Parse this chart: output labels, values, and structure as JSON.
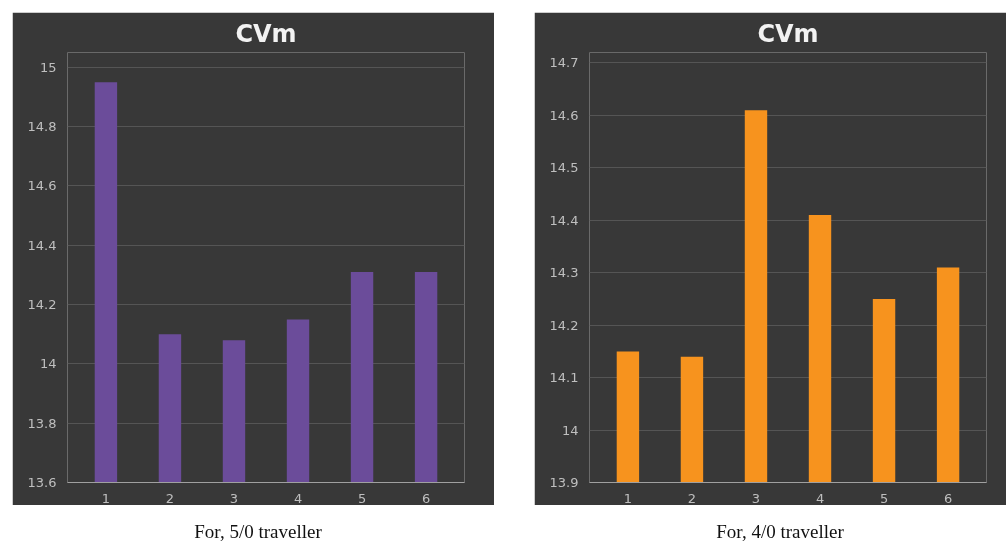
{
  "chart_data": [
    {
      "type": "bar",
      "title": "CVm",
      "categories": [
        "1",
        "2",
        "3",
        "4",
        "5",
        "6"
      ],
      "values": [
        14.95,
        14.1,
        14.08,
        14.15,
        14.31,
        14.31
      ],
      "color": "#6b4c9a",
      "ylim": [
        13.6,
        15.05
      ],
      "yticks": [
        13.6,
        13.8,
        14,
        14.2,
        14.4,
        14.6,
        14.8,
        15
      ],
      "grid": "y",
      "annotations": [
        "For, 5/0 traveller"
      ]
    },
    {
      "type": "bar",
      "title": "CVm",
      "categories": [
        "1",
        "2",
        "3",
        "4",
        "5",
        "6"
      ],
      "values": [
        14.15,
        14.14,
        14.61,
        14.41,
        14.25,
        14.31
      ],
      "color": "#f7931e",
      "ylim": [
        13.9,
        14.72
      ],
      "yticks": [
        13.9,
        14,
        14.1,
        14.2,
        14.3,
        14.4,
        14.5,
        14.6,
        14.7
      ],
      "grid": "y",
      "annotations": [
        "For, 4/0 traveller"
      ]
    }
  ]
}
